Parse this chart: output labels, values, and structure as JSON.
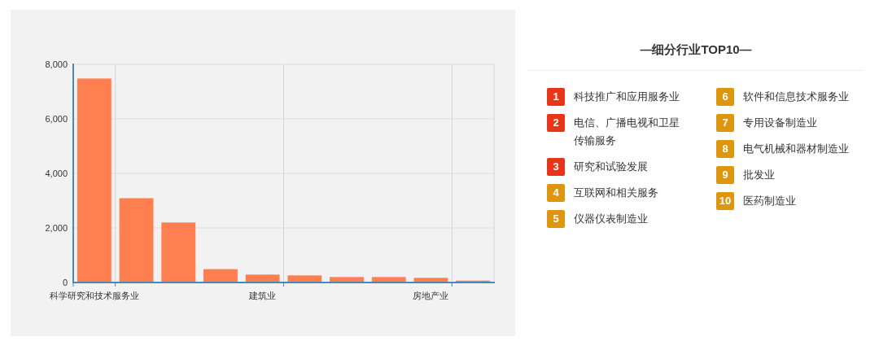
{
  "chart_data": [
    {
      "type": "bar",
      "categories": [
        "科学研究和技术服务业",
        null,
        null,
        null,
        "建筑业",
        null,
        null,
        null,
        "房地产业",
        null
      ],
      "values": [
        7480,
        3090,
        2200,
        490,
        290,
        260,
        200,
        200,
        170,
        70
      ],
      "color": "#ff7f50",
      "ylim": [
        0,
        8000
      ],
      "yticks": [
        0,
        {
          "value": 2000,
          "label": "2,000"
        },
        {
          "value": 4000,
          "label": "4,000"
        },
        {
          "value": 6000,
          "label": "6,000"
        },
        {
          "value": 8000,
          "label": "8,000"
        }
      ],
      "grid": true
    },
    {
      "type": "other",
      "title": "—细分行业TOP10—",
      "categories": [
        "科技推广和应用服务业",
        "电信、广播电视和卫星传输服务",
        "研究和试验发展",
        "互联网和相关服务",
        "仪器仪表制造业",
        "软件和信息技术服务业",
        "专用设备制造业",
        "电气机械和器材制造业",
        "批发业",
        "医药制造业"
      ],
      "values": [
        1,
        2,
        3,
        4,
        5,
        6,
        7,
        8,
        9,
        10
      ],
      "data_labels": true,
      "colors": [
        "#e8351a",
        "#e8351a",
        "#e8351a",
        "#de960f",
        "#de960f",
        "#de960f",
        "#de960f",
        "#de960f",
        "#de960f",
        "#de960f"
      ]
    }
  ]
}
